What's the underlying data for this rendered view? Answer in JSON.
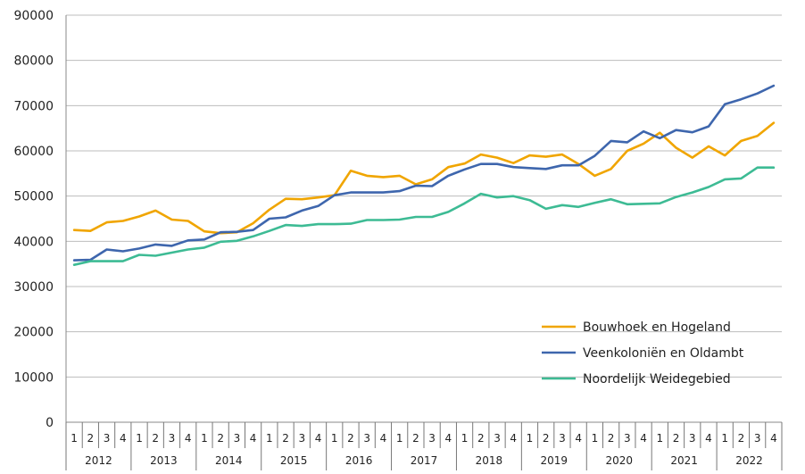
{
  "chart_data": {
    "type": "line",
    "title": "",
    "xlabel": "",
    "ylabel": "",
    "ylim": [
      0,
      90000
    ],
    "yticks": [
      "0",
      "10000",
      "20000",
      "30000",
      "40000",
      "50000",
      "60000",
      "70000",
      "80000",
      "90000"
    ],
    "grid": true,
    "legend_position": "bottom-right",
    "quarters": [
      "1",
      "2",
      "3",
      "4",
      "1",
      "2",
      "3",
      "4",
      "1",
      "2",
      "3",
      "4",
      "1",
      "2",
      "3",
      "4",
      "1",
      "2",
      "3",
      "4",
      "1",
      "2",
      "3",
      "4",
      "1",
      "2",
      "3",
      "4",
      "1",
      "2",
      "3",
      "4",
      "1",
      "2",
      "3",
      "4",
      "1",
      "2",
      "3",
      "4",
      "1",
      "2",
      "3",
      "4"
    ],
    "years": [
      "2012",
      "2013",
      "2014",
      "2015",
      "2016",
      "2017",
      "2018",
      "2019",
      "2020",
      "2021",
      "2022"
    ],
    "series": [
      {
        "name": "Bouwhoek en Hogeland",
        "color": "#F0A500",
        "values": [
          42500,
          42300,
          44200,
          44500,
          45500,
          46800,
          44800,
          44500,
          42200,
          41800,
          42000,
          44000,
          47000,
          49400,
          49300,
          49700,
          50200,
          55600,
          54500,
          54200,
          54500,
          52600,
          53700,
          56400,
          57200,
          59200,
          58500,
          57300,
          59000,
          58700,
          59200,
          57100,
          54500,
          56000,
          60000,
          61600,
          64000,
          60700,
          58500,
          61000,
          59000,
          62200,
          63300,
          66200
        ]
      },
      {
        "name": "Veenkoloniën en Oldambt",
        "color": "#3E66AD",
        "values": [
          35800,
          35900,
          38200,
          37800,
          38400,
          39300,
          39000,
          40200,
          40400,
          42000,
          42100,
          42500,
          45000,
          45300,
          46800,
          47800,
          50200,
          50800,
          50800,
          50800,
          51100,
          52300,
          52200,
          54500,
          55900,
          57100,
          57100,
          56400,
          56200,
          56000,
          56800,
          56800,
          58900,
          62200,
          61900,
          64300,
          62800,
          64600,
          64100,
          65400,
          70300,
          71400,
          72700,
          74400
        ]
      },
      {
        "name": "Noordelijk Weidegebied",
        "color": "#3DBB94",
        "values": [
          34800,
          35600,
          35600,
          35600,
          37000,
          36800,
          37500,
          38200,
          38600,
          39900,
          40100,
          41100,
          42300,
          43600,
          43400,
          43800,
          43800,
          43900,
          44700,
          44700,
          44800,
          45400,
          45400,
          46500,
          48400,
          50500,
          49700,
          50000,
          49100,
          47200,
          48000,
          47600,
          48500,
          49300,
          48200,
          48300,
          48400,
          49800,
          50800,
          52000,
          53700,
          53900,
          56300,
          56300
        ]
      }
    ]
  }
}
